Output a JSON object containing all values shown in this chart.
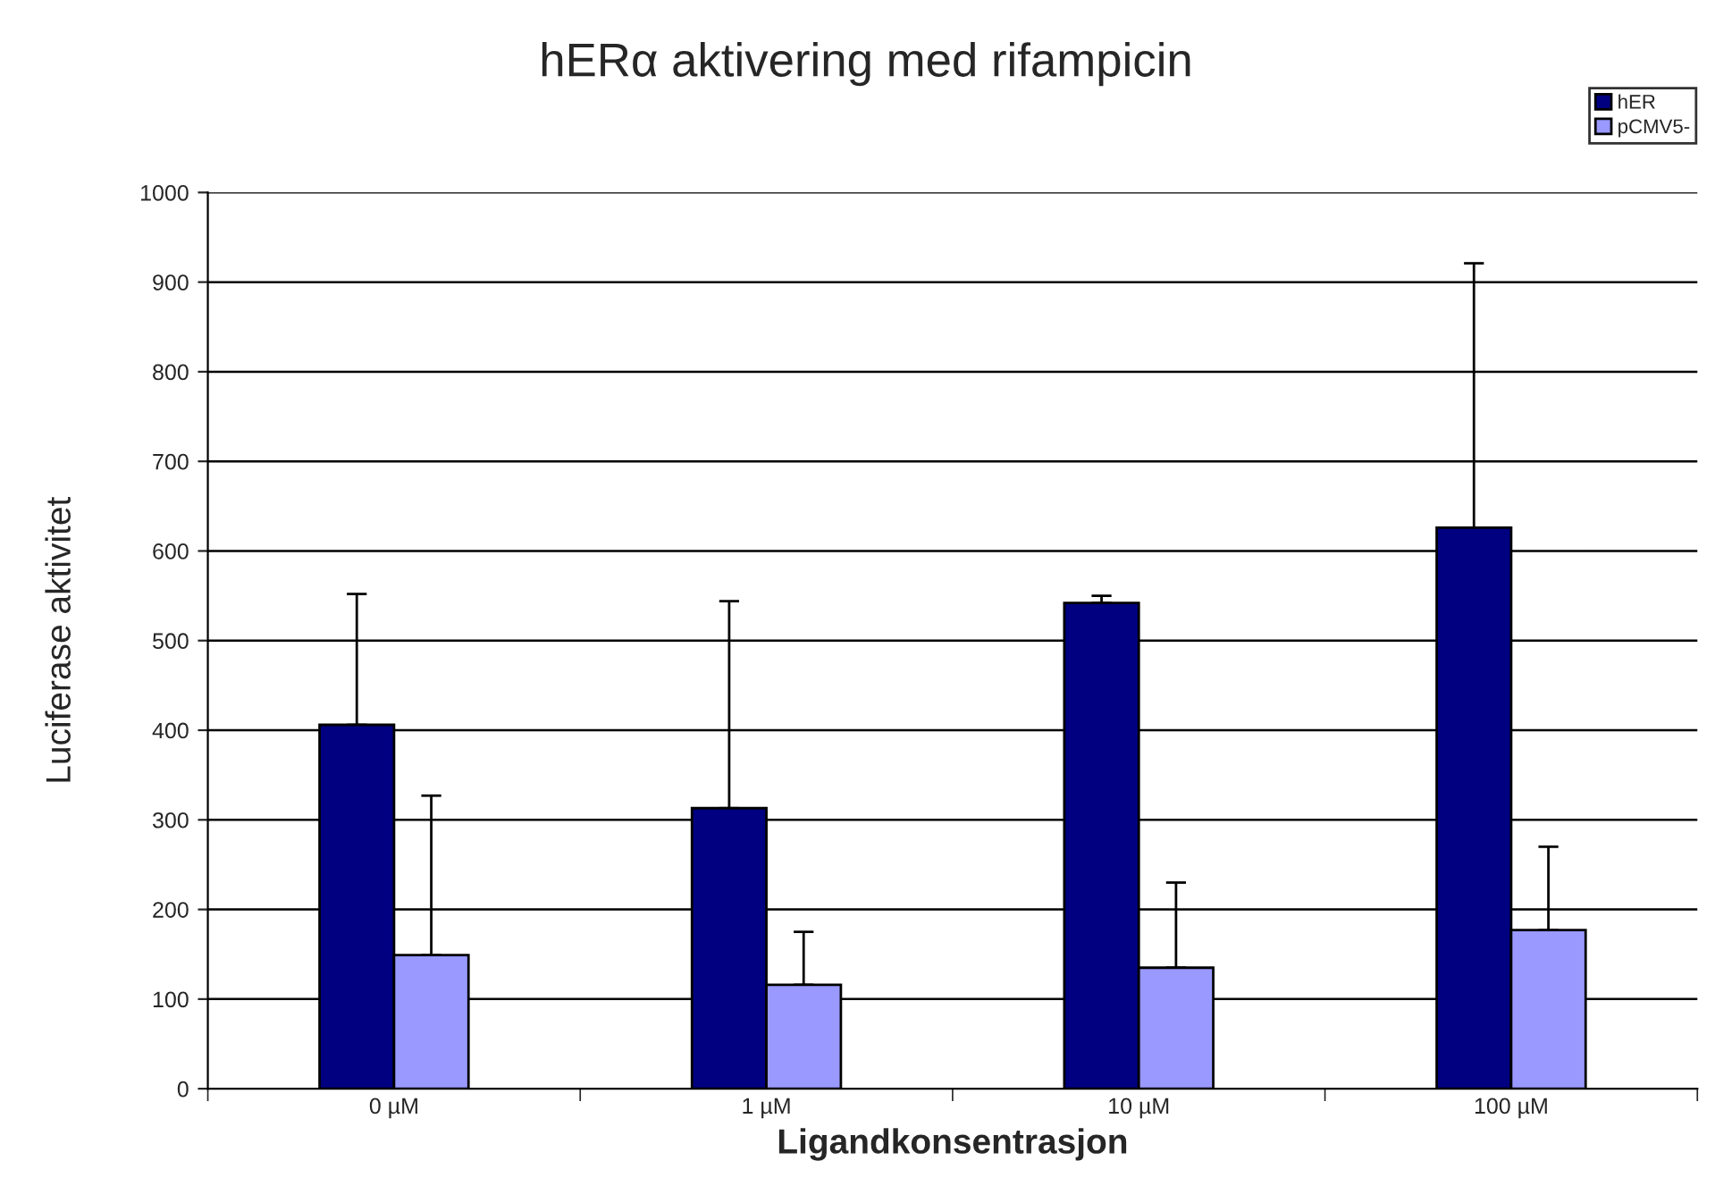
{
  "chart_data": {
    "type": "bar",
    "title": "hERα aktivering med rifampicin",
    "xlabel": "Ligandkonsentrasjon",
    "ylabel": "Luciferase aktivitet",
    "categories": [
      "0 µM",
      "1 µM",
      "10 µM",
      "100 µM"
    ],
    "series": [
      {
        "name": "hER",
        "color": "#000080",
        "values": [
          406,
          313,
          542,
          626
        ],
        "errors": [
          [
            406,
            552
          ],
          [
            313,
            544
          ],
          [
            542,
            550
          ],
          [
            626,
            921
          ]
        ]
      },
      {
        "name": "pCMV5-",
        "color": "#9999ff",
        "values": [
          149,
          116,
          135,
          177
        ],
        "errors": [
          [
            149,
            327
          ],
          [
            116,
            175
          ],
          [
            135,
            230
          ],
          [
            177,
            270
          ]
        ]
      }
    ],
    "ylim": [
      0,
      1000
    ],
    "yticks": [
      0,
      100,
      200,
      300,
      400,
      500,
      600,
      700,
      800,
      900,
      1000
    ],
    "grid": "y",
    "legend": "top right"
  }
}
